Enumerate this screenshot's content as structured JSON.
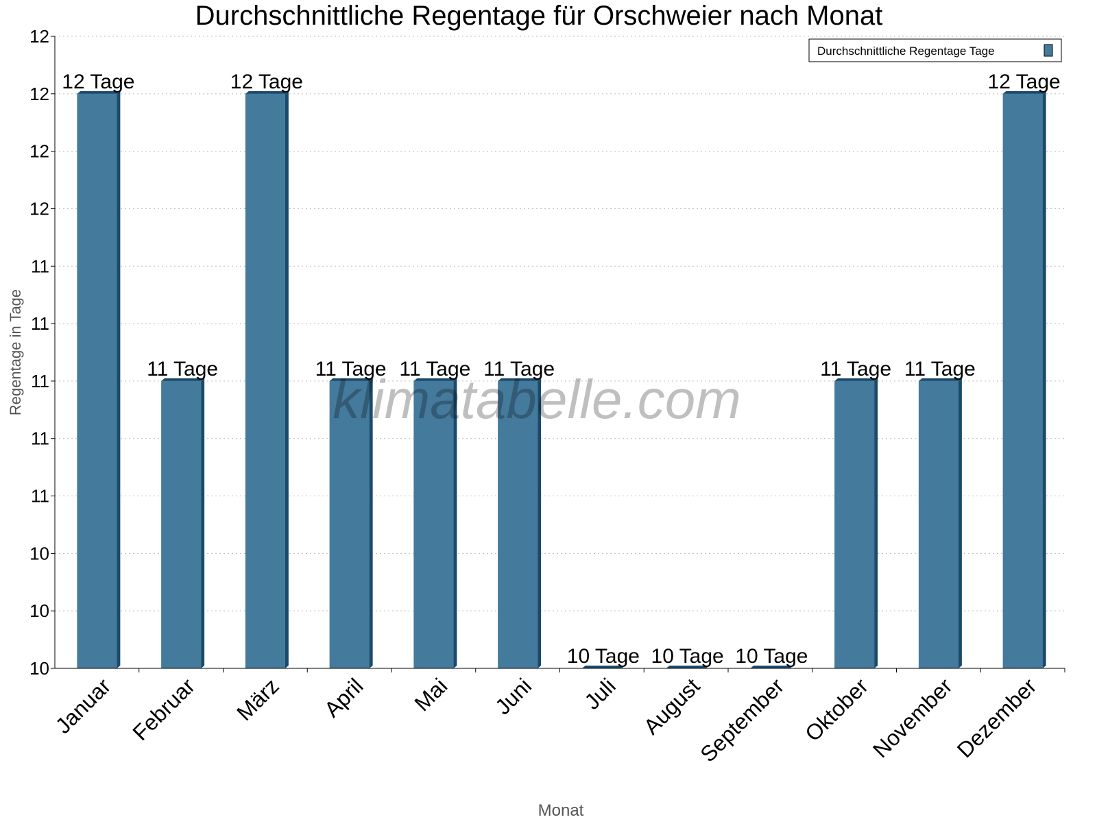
{
  "chart_data": {
    "type": "bar",
    "title": "Durchschnittliche Regentage für Orschweier nach Monat",
    "xlabel": "Monat",
    "ylabel": "Regentage in Tage",
    "categories": [
      "Januar",
      "Februar",
      "März",
      "April",
      "Mai",
      "Juni",
      "Juli",
      "August",
      "September",
      "Oktober",
      "November",
      "Dezember"
    ],
    "series": [
      {
        "name": "Durchschnittliche Regentage Tage",
        "values": [
          12,
          11,
          12,
          11,
          11,
          11,
          10,
          10,
          10,
          11,
          11,
          12
        ]
      }
    ],
    "data_labels": [
      "12 Tage",
      "11 Tage",
      "12 Tage",
      "11 Tage",
      "11 Tage",
      "11 Tage",
      "10 Tage",
      "10 Tage",
      "10 Tage",
      "11 Tage",
      "11 Tage",
      "12 Tage"
    ],
    "ylim": [
      10,
      12.2
    ],
    "yticks": [
      10,
      10.2,
      10.4,
      10.6,
      10.8,
      11,
      11.2,
      11.4,
      11.6,
      11.8,
      12,
      12.2
    ],
    "ytick_labels": [
      "10",
      "10",
      "10",
      "11",
      "11",
      "11",
      "11",
      "11",
      "12",
      "12",
      "12",
      "12"
    ],
    "grid": true,
    "legend_position": "top-right",
    "watermark": "klimatabelle.com",
    "colors": {
      "bar": "#447a9c",
      "bar_dark": "#1a4a6b"
    }
  }
}
